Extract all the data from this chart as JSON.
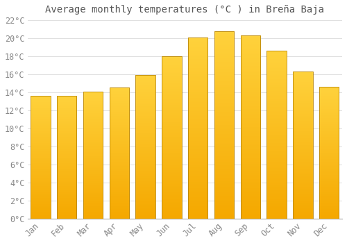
{
  "title": "Average monthly temperatures (°C ) in Breña Baja",
  "months": [
    "Jan",
    "Feb",
    "Mar",
    "Apr",
    "May",
    "Jun",
    "Jul",
    "Aug",
    "Sep",
    "Oct",
    "Nov",
    "Dec"
  ],
  "temperatures": [
    13.6,
    13.6,
    14.1,
    14.5,
    15.9,
    18.0,
    20.1,
    20.8,
    20.3,
    18.6,
    16.3,
    14.6
  ],
  "bar_color_bottom": "#F5A800",
  "bar_color_top": "#FFD060",
  "bar_color_center": "#FFD060",
  "bar_edge_color": "#B8860B",
  "ylim": [
    0,
    22
  ],
  "yticks": [
    0,
    2,
    4,
    6,
    8,
    10,
    12,
    14,
    16,
    18,
    20,
    22
  ],
  "background_color": "#FFFFFF",
  "plot_bg_color": "#FFFFFF",
  "grid_color": "#E0E0E0",
  "title_fontsize": 10,
  "tick_fontsize": 8.5,
  "tick_color": "#888888",
  "title_color": "#555555"
}
